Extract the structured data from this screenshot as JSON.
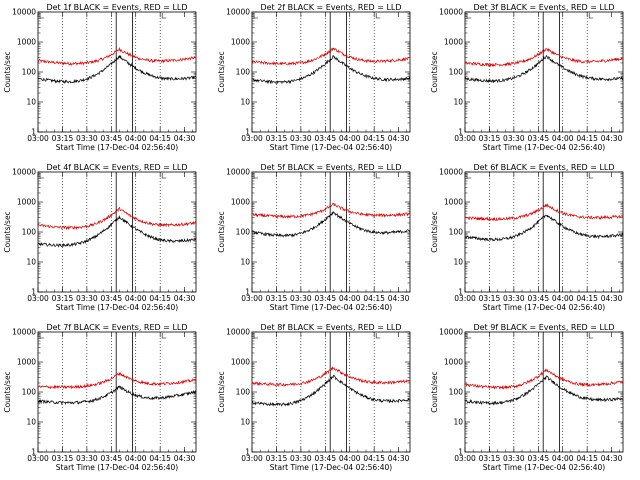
{
  "chart_data": {
    "type": "line",
    "panels": [
      {
        "title": "Det 1f BLACK = Events, RED = LLD",
        "red": {
          "base": 170,
          "peak": 580,
          "start": 240,
          "end": 300
        },
        "black": {
          "base": 38,
          "peak": 330,
          "start": 60,
          "end": 65
        }
      },
      {
        "title": "Det 2f BLACK = Events, RED = LLD",
        "red": {
          "base": 170,
          "peak": 620,
          "start": 220,
          "end": 280
        },
        "black": {
          "base": 38,
          "peak": 330,
          "start": 55,
          "end": 60
        }
      },
      {
        "title": "Det 3f BLACK = Events, RED = LLD",
        "red": {
          "base": 160,
          "peak": 600,
          "start": 200,
          "end": 280
        },
        "black": {
          "base": 42,
          "peak": 340,
          "start": 60,
          "end": 60
        }
      },
      {
        "title": "Det 4f BLACK = Events, RED = LLD",
        "red": {
          "base": 120,
          "peak": 600,
          "start": 170,
          "end": 200
        },
        "black": {
          "base": 30,
          "peak": 320,
          "start": 40,
          "end": 55
        }
      },
      {
        "title": "Det 5f BLACK = Events, RED = LLD",
        "red": {
          "base": 300,
          "peak": 850,
          "start": 380,
          "end": 400
        },
        "black": {
          "base": 60,
          "peak": 460,
          "start": 100,
          "end": 110
        }
      },
      {
        "title": "Det 6f BLACK = Events, RED = LLD",
        "red": {
          "base": 250,
          "peak": 800,
          "start": 300,
          "end": 330
        },
        "black": {
          "base": 45,
          "peak": 380,
          "start": 70,
          "end": 80
        }
      },
      {
        "title": "Det 7f BLACK = Events, RED = LLD",
        "red": {
          "base": 140,
          "peak": 420,
          "start": 150,
          "end": 250
        },
        "black": {
          "base": 40,
          "peak": 150,
          "start": 50,
          "end": 100
        }
      },
      {
        "title": "Det 8f BLACK = Events, RED = LLD",
        "red": {
          "base": 160,
          "peak": 650,
          "start": 200,
          "end": 230
        },
        "black": {
          "base": 30,
          "peak": 340,
          "start": 45,
          "end": 55
        }
      },
      {
        "title": "Det 9f BLACK = Events, RED = LLD",
        "red": {
          "base": 120,
          "peak": 550,
          "start": 180,
          "end": 220
        },
        "black": {
          "base": 35,
          "peak": 320,
          "start": 50,
          "end": 60
        }
      }
    ],
    "x_range_minutes": [
      0,
      97
    ],
    "peak_minute": 50,
    "x_ticks": [
      "03:00",
      "03:15",
      "03:30",
      "03:45",
      "04:00",
      "04:15",
      "04:30"
    ],
    "x_tick_minutes": [
      0,
      15,
      30,
      45,
      60,
      75,
      90
    ],
    "dotted_lines_minutes": [
      15,
      30,
      45,
      60,
      75
    ],
    "solid_lines_minutes": [
      48,
      58
    ],
    "y_scale": "log",
    "y_range": [
      1,
      10000
    ],
    "y_ticks": [
      "1",
      "10",
      "100",
      "1000",
      "10000"
    ],
    "ylabel": "Counts/sec",
    "xlabel": "Start Time (17-Dec-04 02:56:40)",
    "colors": {
      "red": "#dd0000",
      "black": "#000000"
    }
  }
}
